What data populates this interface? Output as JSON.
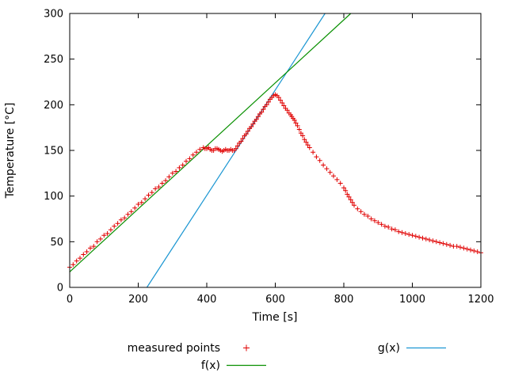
{
  "chart_data": {
    "type": "scatter",
    "title": "",
    "xlabel": "Time [s]",
    "ylabel": "Temperature [°C]",
    "xlim": [
      0,
      1200
    ],
    "ylim": [
      0,
      300
    ],
    "xticks": [
      0,
      200,
      400,
      600,
      800,
      1000,
      1200
    ],
    "yticks": [
      0,
      50,
      100,
      150,
      200,
      250,
      300
    ],
    "grid": false,
    "legend_position": "below",
    "series": [
      {
        "name": "measured points",
        "type": "points",
        "marker": "plus",
        "color": "#e00000",
        "points": [
          [
            0,
            22
          ],
          [
            10,
            25
          ],
          [
            20,
            29
          ],
          [
            30,
            32
          ],
          [
            40,
            36
          ],
          [
            50,
            39
          ],
          [
            60,
            43
          ],
          [
            70,
            45
          ],
          [
            80,
            50
          ],
          [
            90,
            53
          ],
          [
            100,
            57
          ],
          [
            110,
            59
          ],
          [
            120,
            63
          ],
          [
            130,
            67
          ],
          [
            140,
            70
          ],
          [
            150,
            74
          ],
          [
            160,
            76
          ],
          [
            170,
            80
          ],
          [
            180,
            83
          ],
          [
            190,
            87
          ],
          [
            200,
            91
          ],
          [
            210,
            93
          ],
          [
            220,
            97
          ],
          [
            230,
            101
          ],
          [
            240,
            104
          ],
          [
            250,
            108
          ],
          [
            260,
            110
          ],
          [
            270,
            114
          ],
          [
            280,
            117
          ],
          [
            290,
            121
          ],
          [
            300,
            125
          ],
          [
            310,
            127
          ],
          [
            320,
            131
          ],
          [
            330,
            134
          ],
          [
            340,
            138
          ],
          [
            350,
            141
          ],
          [
            360,
            145
          ],
          [
            370,
            148
          ],
          [
            380,
            151
          ],
          [
            390,
            153
          ],
          [
            395,
            152
          ],
          [
            400,
            152
          ],
          [
            405,
            153
          ],
          [
            410,
            151
          ],
          [
            415,
            150
          ],
          [
            420,
            150
          ],
          [
            425,
            152
          ],
          [
            430,
            152
          ],
          [
            435,
            151
          ],
          [
            440,
            150
          ],
          [
            445,
            149
          ],
          [
            450,
            150
          ],
          [
            455,
            151
          ],
          [
            460,
            150
          ],
          [
            465,
            150
          ],
          [
            470,
            151
          ],
          [
            475,
            150
          ],
          [
            480,
            150
          ],
          [
            485,
            152
          ],
          [
            490,
            155
          ],
          [
            495,
            158
          ],
          [
            500,
            160
          ],
          [
            505,
            163
          ],
          [
            510,
            166
          ],
          [
            515,
            168
          ],
          [
            520,
            171
          ],
          [
            525,
            174
          ],
          [
            530,
            176
          ],
          [
            535,
            179
          ],
          [
            540,
            182
          ],
          [
            545,
            184
          ],
          [
            550,
            187
          ],
          [
            555,
            190
          ],
          [
            560,
            192
          ],
          [
            565,
            195
          ],
          [
            570,
            198
          ],
          [
            575,
            200
          ],
          [
            580,
            203
          ],
          [
            585,
            206
          ],
          [
            590,
            208
          ],
          [
            595,
            210
          ],
          [
            600,
            211
          ],
          [
            605,
            210
          ],
          [
            610,
            208
          ],
          [
            615,
            205
          ],
          [
            620,
            202
          ],
          [
            625,
            199
          ],
          [
            630,
            196
          ],
          [
            635,
            194
          ],
          [
            640,
            191
          ],
          [
            645,
            189
          ],
          [
            648,
            187
          ],
          [
            652,
            185
          ],
          [
            656,
            183
          ],
          [
            660,
            180
          ],
          [
            665,
            177
          ],
          [
            670,
            173
          ],
          [
            675,
            169
          ],
          [
            680,
            166
          ],
          [
            685,
            162
          ],
          [
            690,
            159
          ],
          [
            695,
            156
          ],
          [
            700,
            153
          ],
          [
            710,
            148
          ],
          [
            720,
            143
          ],
          [
            730,
            139
          ],
          [
            740,
            134
          ],
          [
            750,
            130
          ],
          [
            760,
            126
          ],
          [
            770,
            122
          ],
          [
            780,
            118
          ],
          [
            790,
            114
          ],
          [
            800,
            109
          ],
          [
            805,
            106
          ],
          [
            810,
            102
          ],
          [
            815,
            99
          ],
          [
            820,
            96
          ],
          [
            825,
            93
          ],
          [
            830,
            90
          ],
          [
            840,
            86
          ],
          [
            850,
            83
          ],
          [
            860,
            80
          ],
          [
            870,
            78
          ],
          [
            880,
            75
          ],
          [
            890,
            73
          ],
          [
            900,
            71
          ],
          [
            910,
            69
          ],
          [
            920,
            67
          ],
          [
            930,
            66
          ],
          [
            940,
            64
          ],
          [
            950,
            63
          ],
          [
            960,
            61
          ],
          [
            970,
            60
          ],
          [
            980,
            59
          ],
          [
            990,
            58
          ],
          [
            1000,
            57
          ],
          [
            1010,
            56
          ],
          [
            1020,
            55
          ],
          [
            1030,
            54
          ],
          [
            1040,
            53
          ],
          [
            1050,
            52
          ],
          [
            1060,
            51
          ],
          [
            1070,
            50
          ],
          [
            1080,
            49
          ],
          [
            1090,
            48
          ],
          [
            1100,
            47
          ],
          [
            1110,
            46
          ],
          [
            1120,
            45
          ],
          [
            1130,
            45
          ],
          [
            1140,
            44
          ],
          [
            1150,
            43
          ],
          [
            1160,
            42
          ],
          [
            1170,
            41
          ],
          [
            1180,
            40
          ],
          [
            1190,
            39
          ],
          [
            1200,
            38
          ]
        ]
      },
      {
        "name": "f(x)",
        "type": "line",
        "color": "#089000",
        "slope": 0.345,
        "intercept": 17
      },
      {
        "name": "g(x)",
        "type": "line",
        "color": "#1b96d2",
        "slope": 0.577,
        "intercept": -130
      }
    ],
    "colors": {
      "measured_points": "#e00000",
      "f_line": "#089000",
      "g_line": "#1b96d2",
      "axis": "#000000",
      "background": "#ffffff"
    }
  }
}
